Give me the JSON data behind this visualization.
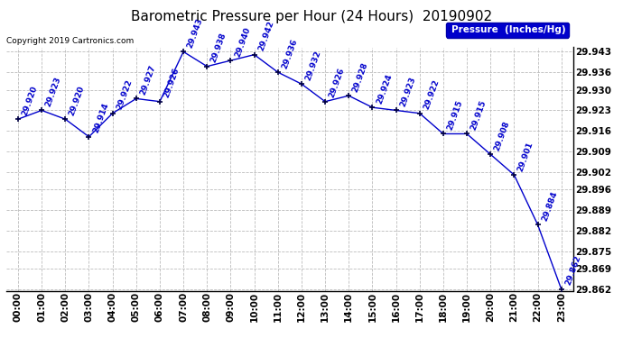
{
  "title": "Barometric Pressure per Hour (24 Hours)  20190902",
  "copyright": "Copyright 2019 Cartronics.com",
  "legend_label": "Pressure  (Inches/Hg)",
  "hours": [
    "00:00",
    "01:00",
    "02:00",
    "03:00",
    "04:00",
    "05:00",
    "06:00",
    "07:00",
    "08:00",
    "09:00",
    "10:00",
    "11:00",
    "12:00",
    "13:00",
    "14:00",
    "15:00",
    "16:00",
    "17:00",
    "18:00",
    "19:00",
    "20:00",
    "21:00",
    "22:00",
    "23:00"
  ],
  "values": [
    29.92,
    29.923,
    29.92,
    29.914,
    29.922,
    29.927,
    29.926,
    29.943,
    29.938,
    29.94,
    29.942,
    29.936,
    29.932,
    29.926,
    29.928,
    29.924,
    29.923,
    29.922,
    29.915,
    29.915,
    29.908,
    29.901,
    29.884,
    29.862
  ],
  "line_color": "#0000CC",
  "marker_color": "#000044",
  "bg_color": "#FFFFFF",
  "grid_color": "#BBBBBB",
  "text_color": "#000000",
  "label_color": "#0000CC",
  "ymin": 29.8615,
  "ymax": 29.9445,
  "yticks": [
    29.862,
    29.869,
    29.875,
    29.882,
    29.889,
    29.896,
    29.902,
    29.909,
    29.916,
    29.923,
    29.93,
    29.936,
    29.943
  ],
  "title_fontsize": 11,
  "label_fontsize": 6.5,
  "tick_fontsize": 7.5,
  "copyright_fontsize": 6.5,
  "legend_fontsize": 7.5
}
